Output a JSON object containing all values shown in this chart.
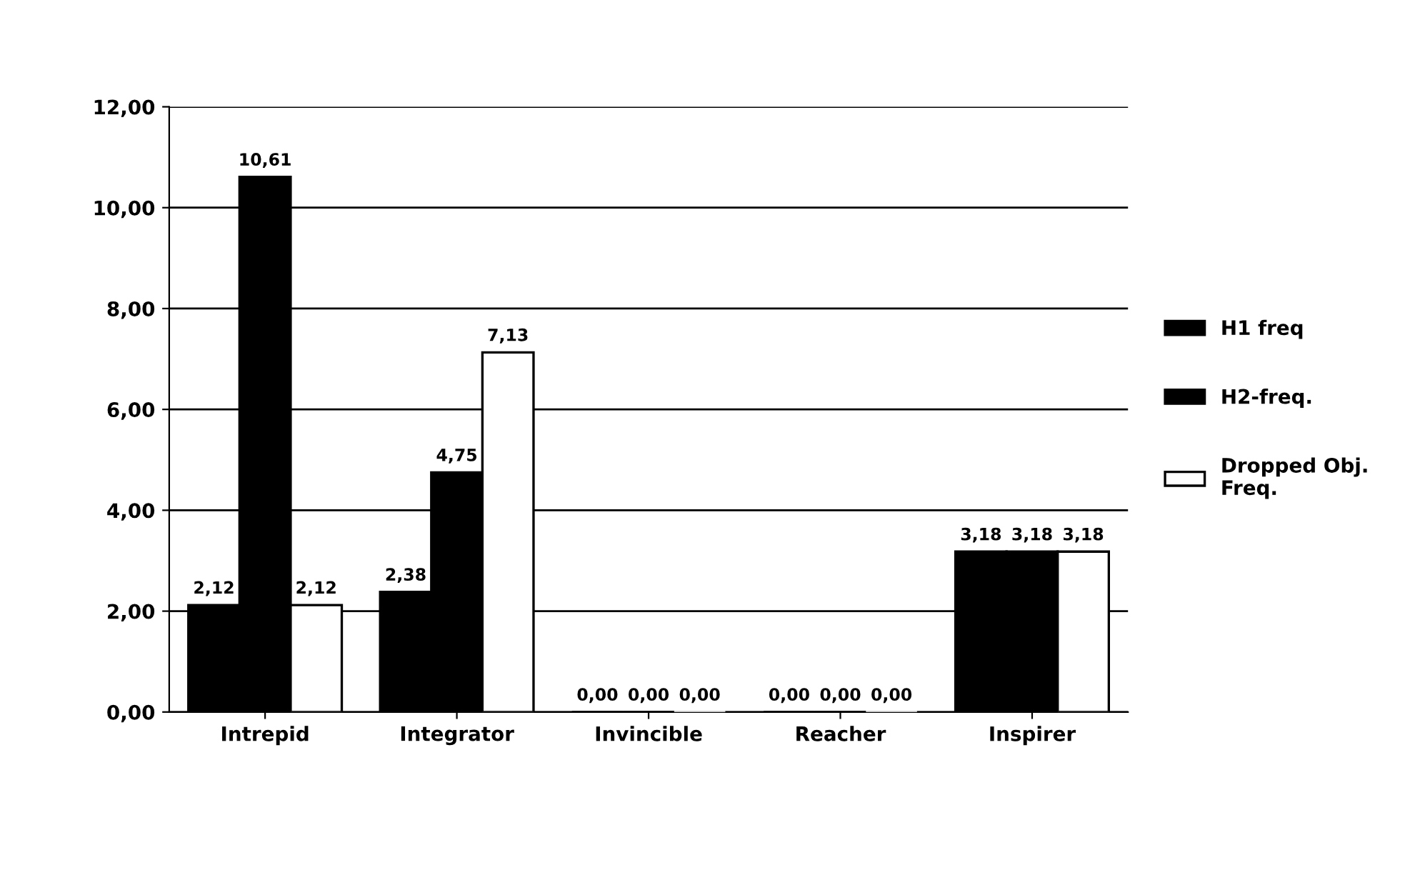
{
  "chart_data": {
    "type": "bar",
    "categories": [
      "Intrepid",
      "Integrator",
      "Invincible",
      "Reacher",
      "Inspirer"
    ],
    "series": [
      {
        "name": "H1 freq",
        "color": "#000000",
        "values": [
          2.12,
          2.38,
          0,
          0,
          3.18
        ],
        "value_labels": [
          "2,12",
          "2,38",
          "0,00",
          "0,00",
          "3,18"
        ]
      },
      {
        "name": "H2-freq.",
        "color": "#000000",
        "values": [
          10.61,
          4.75,
          0,
          0,
          3.18
        ],
        "value_labels": [
          "10,61",
          "4,75",
          "0,00",
          "0,00",
          "3,18"
        ]
      },
      {
        "name": "Dropped Obj.\nFreq.",
        "color": "#ffffff",
        "values": [
          2.12,
          7.13,
          0,
          0,
          3.18
        ],
        "value_labels": [
          "2,12",
          "7,13",
          "0,00",
          "0,00",
          "3,18"
        ]
      }
    ],
    "ylim": [
      0,
      12
    ],
    "yticks": [
      {
        "value": 0,
        "label": "0,00"
      },
      {
        "value": 2,
        "label": "2,00"
      },
      {
        "value": 4,
        "label": "4,00"
      },
      {
        "value": 6,
        "label": "6,00"
      },
      {
        "value": 8,
        "label": "8,00"
      },
      {
        "value": 10,
        "label": "10,00"
      },
      {
        "value": 12,
        "label": "12,00"
      }
    ],
    "grid": "y",
    "legend": "right"
  }
}
